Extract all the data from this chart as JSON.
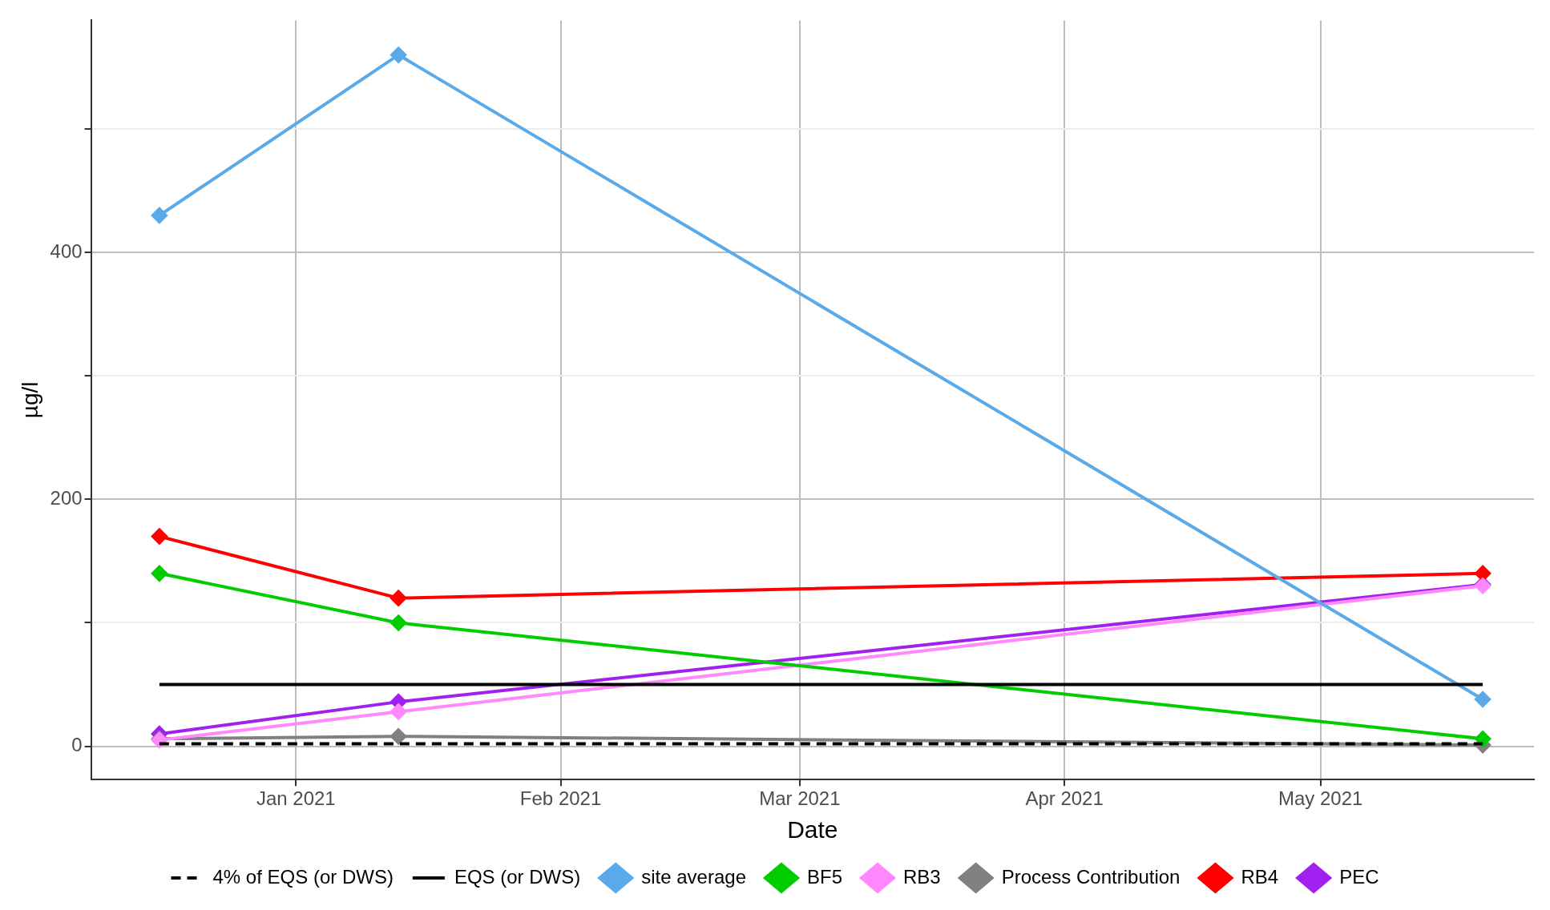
{
  "chart_data": {
    "type": "line",
    "xlabel": "Date",
    "ylabel": "µg/l",
    "x": [
      "2020-12-16",
      "2021-01-13",
      "2021-05-20"
    ],
    "xlim": [
      "2020-12-08",
      "2021-05-26"
    ],
    "xticks": [
      {
        "value": "2021-01-01",
        "label": "Jan 2021"
      },
      {
        "value": "2021-02-01",
        "label": "Feb 2021"
      },
      {
        "value": "2021-03-01",
        "label": "Mar 2021"
      },
      {
        "value": "2021-04-01",
        "label": "Apr 2021"
      },
      {
        "value": "2021-05-01",
        "label": "May 2021"
      }
    ],
    "ylim": [
      -27,
      588
    ],
    "yticks": [
      0,
      {
        "value": 100,
        "label": null
      },
      200,
      {
        "value": 300,
        "label": null
      },
      400,
      {
        "value": 500,
        "label": null
      }
    ],
    "grid": true,
    "legend": "bottom",
    "marker": "diamond",
    "series": [
      {
        "name": "4% of EQS (or DWS)",
        "color": "#000000",
        "values": [
          2,
          2,
          2
        ],
        "line_style": "dashed",
        "marker": "none"
      },
      {
        "name": "EQS (or DWS)",
        "color": "#000000",
        "values": [
          50,
          50,
          50
        ],
        "line_style": "solid",
        "marker": "none"
      },
      {
        "name": "site average",
        "color": "#5aaaea",
        "values": [
          430,
          560,
          38
        ]
      },
      {
        "name": "BF5",
        "color": "#00cc00",
        "values": [
          140,
          100,
          6
        ]
      },
      {
        "name": "RB3",
        "color": "#ff88ff",
        "values": [
          5,
          28,
          130
        ]
      },
      {
        "name": "Process Contribution",
        "color": "#808080",
        "values": [
          6,
          8,
          1
        ]
      },
      {
        "name": "RB4",
        "color": "#ff0000",
        "values": [
          170,
          120,
          140
        ]
      },
      {
        "name": "PEC",
        "color": "#a020f0",
        "values": [
          10,
          36,
          131
        ]
      }
    ]
  }
}
